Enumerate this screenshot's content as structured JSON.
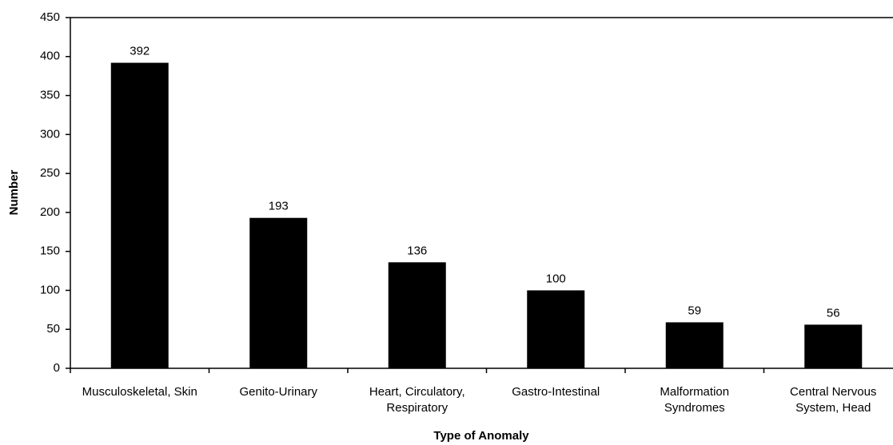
{
  "chart_data": {
    "type": "bar",
    "x_label": "Type of Anomaly",
    "y_label": "Number",
    "categories": [
      "Musculoskeletal, Skin",
      "Genito-Urinary",
      "Heart, Circulatory, Respiratory",
      "Gastro-Intestinal",
      "Malformation Syndromes",
      "Central Nervous System, Head"
    ],
    "values": [
      392,
      193,
      136,
      100,
      59,
      56
    ],
    "color": "#000000",
    "ylim": [
      0,
      450
    ],
    "yticks": [
      0,
      50,
      100,
      150,
      200,
      250,
      300,
      350,
      400,
      450
    ]
  }
}
